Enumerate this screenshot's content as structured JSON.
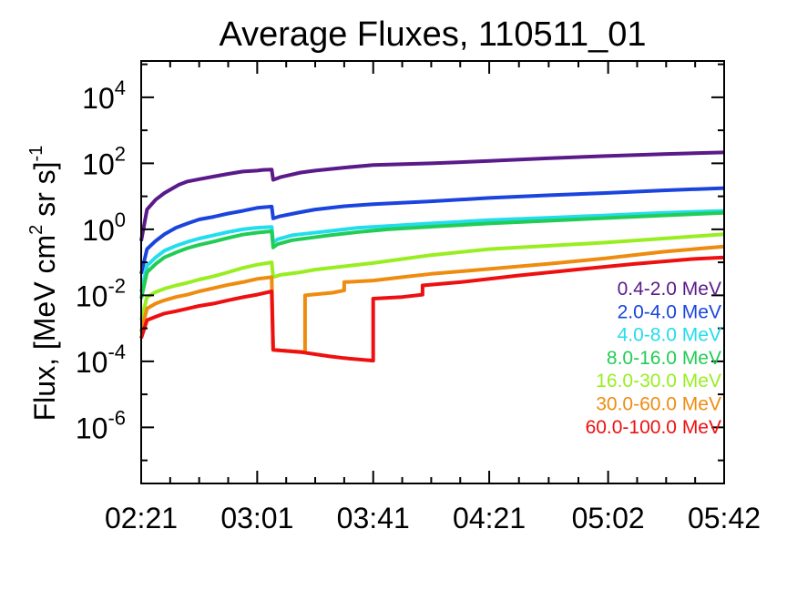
{
  "chart_data": {
    "type": "line",
    "title": "Average Fluxes, 110511_01",
    "ylabel": {
      "main": "Flux, [MeV cm",
      "sup1": "2",
      "mid": " sr s]",
      "sup2": "-1"
    },
    "xlabel": "",
    "y_scale": "log",
    "ylim_exp": [
      -7.7,
      5.1
    ],
    "ytick_exps": [
      4,
      2,
      0,
      -2,
      -4,
      -6
    ],
    "xlim_min": [
      0,
      201
    ],
    "xticks": [
      {
        "min": 0,
        "label": "02:21"
      },
      {
        "min": 40,
        "label": "03:01"
      },
      {
        "min": 80,
        "label": "03:41"
      },
      {
        "min": 120,
        "label": "04:21"
      },
      {
        "min": 161,
        "label": "05:02"
      },
      {
        "min": 201,
        "label": "05:42"
      }
    ],
    "grid": false,
    "legend_position": "right",
    "series": [
      {
        "name": "0.4-2.0 MeV",
        "color": "#5a1a8a",
        "points": [
          [
            0,
            -0.35
          ],
          [
            2,
            0.6
          ],
          [
            5,
            0.9
          ],
          [
            8,
            1.1
          ],
          [
            10,
            1.2
          ],
          [
            13,
            1.35
          ],
          [
            16,
            1.45
          ],
          [
            20,
            1.52
          ],
          [
            25,
            1.6
          ],
          [
            30,
            1.68
          ],
          [
            35,
            1.75
          ],
          [
            40,
            1.78
          ],
          [
            42,
            1.8
          ],
          [
            45,
            1.81
          ],
          [
            45.5,
            1.5
          ],
          [
            48,
            1.58
          ],
          [
            55,
            1.72
          ],
          [
            60,
            1.78
          ],
          [
            70,
            1.87
          ],
          [
            80,
            1.95
          ],
          [
            100,
            2.0
          ],
          [
            120,
            2.07
          ],
          [
            140,
            2.15
          ],
          [
            160,
            2.22
          ],
          [
            180,
            2.28
          ],
          [
            201,
            2.33
          ]
        ]
      },
      {
        "name": "2.0-4.0 MeV",
        "color": "#1a44dd",
        "points": [
          [
            0,
            -1.35
          ],
          [
            2,
            -0.6
          ],
          [
            5,
            -0.35
          ],
          [
            8,
            -0.15
          ],
          [
            12,
            0.05
          ],
          [
            16,
            0.18
          ],
          [
            20,
            0.3
          ],
          [
            25,
            0.38
          ],
          [
            30,
            0.48
          ],
          [
            35,
            0.56
          ],
          [
            40,
            0.65
          ],
          [
            45,
            0.69
          ],
          [
            45.5,
            0.33
          ],
          [
            48,
            0.4
          ],
          [
            55,
            0.52
          ],
          [
            60,
            0.6
          ],
          [
            70,
            0.7
          ],
          [
            80,
            0.76
          ],
          [
            100,
            0.85
          ],
          [
            120,
            0.95
          ],
          [
            140,
            1.03
          ],
          [
            160,
            1.1
          ],
          [
            180,
            1.18
          ],
          [
            201,
            1.25
          ]
        ]
      },
      {
        "name": "4.0-8.0 MeV",
        "color": "#22ddee",
        "points": [
          [
            0,
            -1.9
          ],
          [
            2,
            -1.1
          ],
          [
            5,
            -0.85
          ],
          [
            8,
            -0.65
          ],
          [
            12,
            -0.5
          ],
          [
            16,
            -0.38
          ],
          [
            20,
            -0.28
          ],
          [
            25,
            -0.18
          ],
          [
            30,
            -0.08
          ],
          [
            35,
            0.0
          ],
          [
            40,
            0.05
          ],
          [
            45,
            0.07
          ],
          [
            45.5,
            -0.4
          ],
          [
            47,
            -0.3
          ],
          [
            52,
            -0.18
          ],
          [
            58,
            -0.12
          ],
          [
            65,
            -0.05
          ],
          [
            75,
            0.05
          ],
          [
            85,
            0.1
          ],
          [
            100,
            0.18
          ],
          [
            120,
            0.28
          ],
          [
            140,
            0.35
          ],
          [
            160,
            0.42
          ],
          [
            180,
            0.5
          ],
          [
            201,
            0.56
          ]
        ]
      },
      {
        "name": "8.0-16.0 MeV",
        "color": "#22cc55",
        "points": [
          [
            0,
            -2.1
          ],
          [
            2,
            -1.3
          ],
          [
            5,
            -1.05
          ],
          [
            8,
            -0.85
          ],
          [
            12,
            -0.7
          ],
          [
            16,
            -0.57
          ],
          [
            20,
            -0.47
          ],
          [
            25,
            -0.37
          ],
          [
            30,
            -0.26
          ],
          [
            35,
            -0.16
          ],
          [
            40,
            -0.1
          ],
          [
            45,
            -0.06
          ],
          [
            45.5,
            -0.55
          ],
          [
            47,
            -0.45
          ],
          [
            52,
            -0.33
          ],
          [
            58,
            -0.26
          ],
          [
            65,
            -0.18
          ],
          [
            75,
            -0.08
          ],
          [
            85,
            0.0
          ],
          [
            100,
            0.08
          ],
          [
            120,
            0.18
          ],
          [
            140,
            0.26
          ],
          [
            160,
            0.34
          ],
          [
            180,
            0.42
          ],
          [
            201,
            0.5
          ]
        ]
      },
      {
        "name": "16.0-30.0 MeV",
        "color": "#99ee22",
        "points": [
          [
            0,
            -2.75
          ],
          [
            2,
            -2.05
          ],
          [
            5,
            -1.9
          ],
          [
            8,
            -1.8
          ],
          [
            12,
            -1.7
          ],
          [
            16,
            -1.62
          ],
          [
            20,
            -1.52
          ],
          [
            25,
            -1.42
          ],
          [
            30,
            -1.3
          ],
          [
            35,
            -1.17
          ],
          [
            40,
            -1.07
          ],
          [
            45,
            -1.0
          ],
          [
            45.5,
            -1.45
          ],
          [
            48,
            -1.38
          ],
          [
            55,
            -1.3
          ],
          [
            60,
            -1.22
          ],
          [
            70,
            -1.12
          ],
          [
            80,
            -1.02
          ],
          [
            90,
            -0.9
          ],
          [
            100,
            -0.78
          ],
          [
            120,
            -0.6
          ],
          [
            140,
            -0.5
          ],
          [
            160,
            -0.4
          ],
          [
            180,
            -0.28
          ],
          [
            201,
            -0.15
          ]
        ]
      },
      {
        "name": "30.0-60.0 MeV",
        "color": "#ee8c10",
        "points": [
          [
            0,
            -3.1
          ],
          [
            2,
            -2.4
          ],
          [
            5,
            -2.25
          ],
          [
            8,
            -2.15
          ],
          [
            12,
            -2.05
          ],
          [
            16,
            -1.98
          ],
          [
            20,
            -1.88
          ],
          [
            25,
            -1.78
          ],
          [
            30,
            -1.68
          ],
          [
            35,
            -1.6
          ],
          [
            40,
            -1.5
          ],
          [
            45,
            -1.45
          ],
          [
            45.5,
            -3.65
          ],
          [
            53,
            -3.7
          ],
          [
            56.5,
            -3.72
          ],
          [
            56.5,
            -2.0
          ],
          [
            60,
            -1.97
          ],
          [
            66,
            -1.92
          ],
          [
            70,
            -1.85
          ],
          [
            70,
            -1.6
          ],
          [
            80,
            -1.55
          ],
          [
            90,
            -1.45
          ],
          [
            100,
            -1.35
          ],
          [
            120,
            -1.2
          ],
          [
            140,
            -1.05
          ],
          [
            160,
            -0.88
          ],
          [
            180,
            -0.68
          ],
          [
            201,
            -0.52
          ]
        ]
      },
      {
        "name": "60.0-100.0 MeV",
        "color": "#ee1010",
        "points": [
          [
            0,
            -3.3
          ],
          [
            2,
            -2.75
          ],
          [
            5,
            -2.65
          ],
          [
            8,
            -2.55
          ],
          [
            12,
            -2.48
          ],
          [
            16,
            -2.4
          ],
          [
            20,
            -2.32
          ],
          [
            25,
            -2.25
          ],
          [
            30,
            -2.15
          ],
          [
            35,
            -2.06
          ],
          [
            40,
            -1.98
          ],
          [
            45,
            -1.88
          ],
          [
            45.5,
            -3.65
          ],
          [
            55,
            -3.72
          ],
          [
            65,
            -3.85
          ],
          [
            70,
            -3.9
          ],
          [
            80,
            -3.98
          ],
          [
            80,
            -2.1
          ],
          [
            90,
            -2.05
          ],
          [
            97,
            -1.98
          ],
          [
            97,
            -1.7
          ],
          [
            110,
            -1.6
          ],
          [
            130,
            -1.4
          ],
          [
            150,
            -1.22
          ],
          [
            170,
            -1.05
          ],
          [
            190,
            -0.9
          ],
          [
            201,
            -0.85
          ]
        ]
      }
    ]
  }
}
